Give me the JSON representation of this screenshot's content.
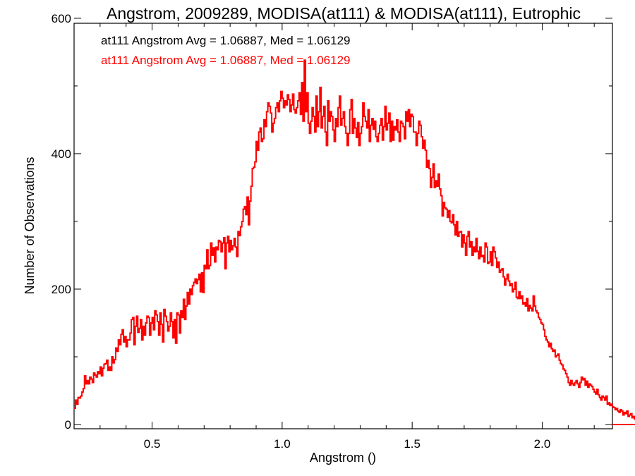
{
  "chart_data": {
    "type": "histogram",
    "title": "Angstrom, 2009289, MODISA(at111) & MODISA(at111), Eutrophic",
    "xlabel": "Angstrom ()",
    "ylabel": "Number of Observations",
    "xlim": [
      0.2,
      2.27
    ],
    "ylim": [
      0,
      600
    ],
    "x_ticks": [
      0.5,
      1.0,
      1.5,
      2.0
    ],
    "x_tick_labels": [
      "0.5",
      "1.0",
      "1.5",
      "2.0"
    ],
    "y_ticks": [
      0,
      200,
      400,
      600
    ],
    "y_tick_labels": [
      "0",
      "200",
      "400",
      "600"
    ],
    "grid": false,
    "annotations": [
      {
        "text": "at111 Angstrom Avg = 1.06887, Med = 1.06129",
        "color": "#000000"
      },
      {
        "text": "at111 Angstrom Avg = 1.06887, Med = 1.06129",
        "color": "#ff0000"
      }
    ],
    "series": [
      {
        "color": "#ff0000",
        "bin_width": 0.005,
        "x_start": 0.2,
        "values": [
          24,
          36,
          30,
          40,
          39,
          42,
          48,
          53,
          72,
          60,
          65,
          60,
          70,
          67,
          62,
          76,
          73,
          70,
          78,
          75,
          85,
          72,
          83,
          89,
          90,
          95,
          80,
          85,
          80,
          100,
          91,
          96,
          113,
          108,
          125,
          118,
          133,
          140,
          122,
          130,
          115,
          125,
          125,
          135,
          155,
          158,
          118,
          145,
          160,
          136,
          142,
          155,
          125,
          145,
          132,
          150,
          160,
          158,
          132,
          150,
          158,
          140,
          168,
          162,
          152,
          132,
          165,
          148,
          122,
          170,
          160,
          152,
          138,
          145,
          165,
          152,
          128,
          155,
          120,
          165,
          162,
          135,
          168,
          158,
          185,
          155,
          175,
          195,
          178,
          200,
          192,
          205,
          210,
          215,
          208,
          214,
          222,
          196,
          224,
          195,
          235,
          230,
          258,
          230,
          235,
          268,
          250,
          261,
          240,
          262,
          258,
          272,
          270,
          255,
          268,
          276,
          230,
          268,
          278,
          255,
          272,
          258,
          264,
          275,
          262,
          248,
          285,
          279,
          292,
          300,
          318,
          322,
          310,
          336,
          295,
          330,
          352,
          378,
          380,
          388,
          418,
          405,
          432,
          438,
          418,
          422,
          450,
          440,
          462,
          475,
          470,
          460,
          432,
          445,
          452,
          468,
          475,
          462,
          478,
          492,
          482,
          468,
          478,
          472,
          487,
          480,
          462,
          472,
          488,
          465,
          460,
          468,
          478,
          490,
          458,
          505,
          448,
          538,
          462,
          490,
          445,
          430,
          448,
          468,
          455,
          432,
          485,
          440,
          462,
          498,
          438,
          455,
          470,
          432,
          412,
          478,
          448,
          462,
          455,
          435,
          418,
          452,
          440,
          468,
          485,
          442,
          452,
          462,
          440,
          430,
          412,
          430,
          465,
          480,
          430,
          452,
          438,
          424,
          446,
          412,
          430,
          440,
          475,
          455,
          448,
          438,
          465,
          418,
          442,
          452,
          436,
          448,
          425,
          418,
          430,
          442,
          452,
          420,
          440,
          470,
          435,
          445,
          460,
          418,
          448,
          420,
          440,
          435,
          450,
          432,
          418,
          448,
          445,
          440,
          422,
          462,
          448,
          465,
          440,
          458,
          455,
          432,
          432,
          412,
          430,
          448,
          442,
          425,
          408,
          420,
          405,
          380,
          390,
          378,
          350,
          365,
          385,
          350,
          360,
          352,
          370,
          348,
          338,
          308,
          328,
          320,
          318,
          306,
          316,
          300,
          298,
          310,
          295,
          280,
          300,
          278,
          284,
          285,
          262,
          280,
          268,
          250,
          278,
          285,
          262,
          270,
          250,
          262,
          255,
          275,
          256,
          245,
          262,
          248,
          250,
          240,
          268,
          262,
          238,
          240,
          255,
          235,
          262,
          255,
          246,
          232,
          240,
          225,
          228,
          230,
          218,
          206,
          215,
          222,
          212,
          205,
          208,
          196,
          200,
          210,
          188,
          186,
          196,
          186,
          190,
          178,
          180,
          175,
          186,
          168,
          176,
          172,
          168,
          190,
          175,
          168,
          165,
          158,
          155,
          150,
          148,
          140,
          130,
          125,
          122,
          115,
          120,
          112,
          108,
          110,
          100,
          102,
          104,
          95,
          90,
          88,
          82,
          80,
          75,
          70,
          62,
          58,
          65,
          60,
          58,
          62,
          65,
          60,
          55,
          62,
          70,
          66,
          68,
          58,
          64,
          55,
          60,
          58,
          56,
          52,
          48,
          45,
          52,
          44,
          40,
          36,
          42,
          40,
          36,
          42,
          30,
          32,
          28,
          30,
          26,
          25,
          22,
          24,
          20,
          18,
          22,
          20,
          14,
          18,
          16,
          20,
          12,
          14,
          16,
          10,
          12,
          8,
          14,
          12,
          10,
          8,
          10,
          12,
          8,
          6,
          12,
          8,
          10,
          6,
          8,
          5,
          6,
          8,
          10,
          4,
          14,
          8,
          5,
          10,
          6,
          12,
          6,
          8,
          10,
          4,
          12,
          9,
          8,
          36,
          10,
          6,
          4,
          3,
          4,
          2
        ]
      }
    ]
  }
}
